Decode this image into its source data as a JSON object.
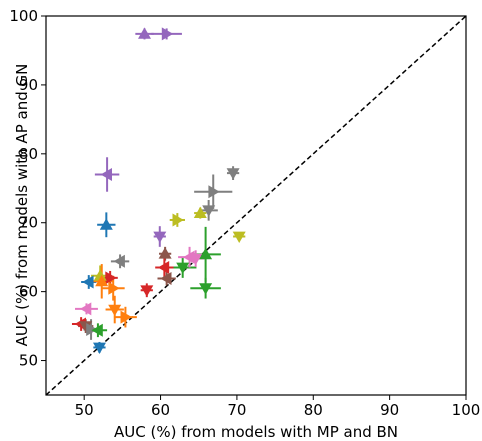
{
  "chart_data": {
    "type": "scatter",
    "title": "",
    "xlabel": "AUC (%) from models with MP and BN",
    "ylabel": "AUC (%) from models with AP and GN",
    "xlim": [
      45,
      100
    ],
    "ylim": [
      45,
      100
    ],
    "xticks": [
      "50",
      "60",
      "70",
      "80",
      "90",
      "100"
    ],
    "yticks": [
      "50",
      "60",
      "70",
      "80",
      "90",
      "100"
    ],
    "reference_line": {
      "style": "dashed",
      "from": [
        45,
        45
      ],
      "to": [
        100,
        100
      ]
    },
    "grid": false,
    "points": [
      {
        "x": 57.9,
        "y": 97.4,
        "xerr": 1.2,
        "yerr": 0.8,
        "marker": "triangle-up",
        "color": "#9467bd"
      },
      {
        "x": 60.8,
        "y": 97.4,
        "xerr": 2.0,
        "yerr": 0.8,
        "marker": "triangle-right",
        "color": "#9467bd"
      },
      {
        "x": 53.0,
        "y": 77.0,
        "xerr": 1.6,
        "yerr": 2.5,
        "marker": "triangle-left",
        "color": "#9467bd"
      },
      {
        "x": 52.9,
        "y": 69.7,
        "xerr": 1.2,
        "yerr": 1.8,
        "marker": "triangle-up",
        "color": "#1f77b4"
      },
      {
        "x": 69.5,
        "y": 77.2,
        "xerr": 0.8,
        "yerr": 1.0,
        "marker": "triangle-down",
        "color": "#7f7f7f"
      },
      {
        "x": 66.9,
        "y": 74.5,
        "xerr": 2.5,
        "yerr": 2.5,
        "marker": "triangle-right",
        "color": "#7f7f7f"
      },
      {
        "x": 66.3,
        "y": 71.8,
        "xerr": 1.2,
        "yerr": 1.5,
        "marker": "triangle-down",
        "color": "#7f7f7f"
      },
      {
        "x": 65.2,
        "y": 71.4,
        "xerr": 0.8,
        "yerr": 0.8,
        "marker": "triangle-up",
        "color": "#bcbd22"
      },
      {
        "x": 62.2,
        "y": 70.4,
        "xerr": 1.0,
        "yerr": 1.0,
        "marker": "triangle-right",
        "color": "#bcbd22"
      },
      {
        "x": 70.3,
        "y": 68.0,
        "xerr": 0.8,
        "yerr": 0.6,
        "marker": "triangle-down",
        "color": "#bcbd22"
      },
      {
        "x": 59.9,
        "y": 68.0,
        "xerr": 0.8,
        "yerr": 1.5,
        "marker": "triangle-down",
        "color": "#9467bd"
      },
      {
        "x": 62.9,
        "y": 63.5,
        "xerr": 1.8,
        "yerr": 1.5,
        "marker": "triangle-down",
        "color": "#2ca02c"
      },
      {
        "x": 65.9,
        "y": 65.4,
        "xerr": 2.0,
        "yerr": 4.0,
        "marker": "triangle-up",
        "color": "#2ca02c"
      },
      {
        "x": 65.9,
        "y": 60.5,
        "xerr": 2.0,
        "yerr": 1.5,
        "marker": "triangle-down",
        "color": "#2ca02c"
      },
      {
        "x": 63.8,
        "y": 65.0,
        "xerr": 1.5,
        "yerr": 1.5,
        "marker": "triangle-left",
        "color": "#e377c2"
      },
      {
        "x": 64.6,
        "y": 64.8,
        "xerr": 1.2,
        "yerr": 1.2,
        "marker": "triangle-down",
        "color": "#e377c2"
      },
      {
        "x": 60.6,
        "y": 65.5,
        "xerr": 0.8,
        "yerr": 1.0,
        "marker": "triangle-up",
        "color": "#8c564b"
      },
      {
        "x": 60.5,
        "y": 63.5,
        "xerr": 1.2,
        "yerr": 1.5,
        "marker": "triangle-left",
        "color": "#d62728"
      },
      {
        "x": 60.8,
        "y": 61.9,
        "xerr": 1.2,
        "yerr": 1.0,
        "marker": "triangle-left",
        "color": "#8c564b"
      },
      {
        "x": 58.2,
        "y": 60.2,
        "xerr": 0.8,
        "yerr": 1.0,
        "marker": "triangle-down",
        "color": "#d62728"
      },
      {
        "x": 54.7,
        "y": 64.4,
        "xerr": 1.2,
        "yerr": 1.0,
        "marker": "triangle-left",
        "color": "#7f7f7f"
      },
      {
        "x": 53.4,
        "y": 62.0,
        "xerr": 1.0,
        "yerr": 1.0,
        "marker": "triangle-right",
        "color": "#d62728"
      },
      {
        "x": 52.1,
        "y": 62.3,
        "xerr": 1.2,
        "yerr": 1.5,
        "marker": "triangle-up",
        "color": "#bcbd22"
      },
      {
        "x": 50.6,
        "y": 61.4,
        "xerr": 1.0,
        "yerr": 1.0,
        "marker": "triangle-left",
        "color": "#1f77b4"
      },
      {
        "x": 52.3,
        "y": 61.5,
        "xerr": 1.5,
        "yerr": 2.5,
        "marker": "triangle-up",
        "color": "#ff7f0e"
      },
      {
        "x": 53.8,
        "y": 60.5,
        "xerr": 1.5,
        "yerr": 1.8,
        "marker": "triangle-right",
        "color": "#ff7f0e"
      },
      {
        "x": 54.0,
        "y": 57.4,
        "xerr": 1.2,
        "yerr": 2.0,
        "marker": "triangle-down",
        "color": "#ff7f0e"
      },
      {
        "x": 55.4,
        "y": 56.3,
        "xerr": 1.5,
        "yerr": 1.5,
        "marker": "triangle-right",
        "color": "#ff7f0e"
      },
      {
        "x": 50.3,
        "y": 57.5,
        "xerr": 1.5,
        "yerr": 0.8,
        "marker": "triangle-left",
        "color": "#e377c2"
      },
      {
        "x": 49.6,
        "y": 55.3,
        "xerr": 1.2,
        "yerr": 1.0,
        "marker": "triangle-left",
        "color": "#d62728"
      },
      {
        "x": 50.2,
        "y": 55.0,
        "xerr": 1.0,
        "yerr": 1.0,
        "marker": "triangle-down",
        "color": "#8c564b"
      },
      {
        "x": 50.9,
        "y": 54.5,
        "xerr": 1.0,
        "yerr": 1.5,
        "marker": "triangle-right",
        "color": "#7f7f7f"
      },
      {
        "x": 51.8,
        "y": 54.4,
        "xerr": 1.2,
        "yerr": 1.0,
        "marker": "triangle-left",
        "color": "#2ca02c"
      },
      {
        "x": 52.0,
        "y": 51.9,
        "xerr": 0.8,
        "yerr": 0.8,
        "marker": "triangle-down",
        "color": "#1f77b4"
      }
    ]
  }
}
